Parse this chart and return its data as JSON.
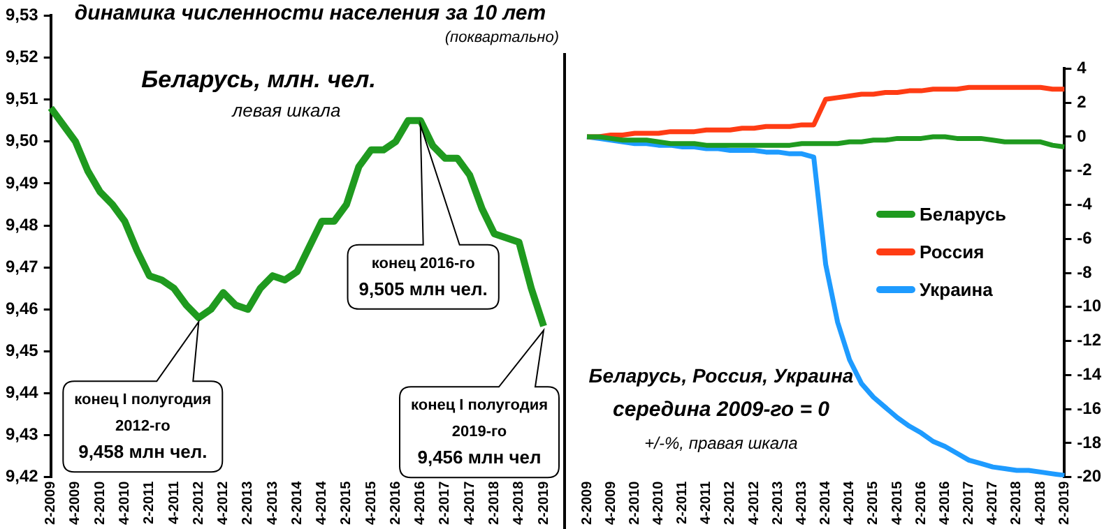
{
  "chart_data": [
    {
      "type": "line",
      "title": "динамика численности населения за 10 лет",
      "subtitle": "(поквартально)",
      "categories": [
        "2-2009",
        null,
        "4-2009",
        null,
        "2-2010",
        null,
        "4-2010",
        null,
        "2-2011",
        null,
        "4-2011",
        null,
        "2-2012",
        null,
        "4-2012",
        null,
        "2-2013",
        null,
        "4-2013",
        null,
        "2-2014",
        null,
        "4-2014",
        null,
        "2-2015",
        null,
        "4-2015",
        null,
        "2-2016",
        null,
        "4-2016",
        null,
        "2-2017",
        null,
        "4-2017",
        null,
        "2-2018",
        null,
        "4-2018",
        null,
        "2-2019"
      ],
      "values": [
        9.508,
        9.504,
        9.5,
        9.493,
        9.488,
        9.485,
        9.481,
        9.474,
        9.468,
        9.467,
        9.465,
        9.461,
        9.458,
        9.46,
        9.464,
        9.461,
        9.46,
        9.465,
        9.468,
        9.467,
        9.469,
        9.475,
        9.481,
        9.481,
        9.485,
        9.494,
        9.498,
        9.498,
        9.5,
        9.505,
        9.505,
        9.499,
        9.496,
        9.496,
        9.492,
        9.484,
        9.478,
        9.477,
        9.476,
        9.465,
        9.456
      ],
      "color": "#1f9a1f",
      "marker": "none",
      "ylim": [
        9.42,
        9.53
      ],
      "yticks": [
        {
          "value": 9.42,
          "label": "9,42"
        },
        {
          "value": 9.43,
          "label": "9,43"
        },
        {
          "value": 9.44,
          "label": "9,44"
        },
        {
          "value": 9.45,
          "label": "9,45"
        },
        {
          "value": 9.46,
          "label": "9,46"
        },
        {
          "value": 9.47,
          "label": "9,47"
        },
        {
          "value": 9.48,
          "label": "9,48"
        },
        {
          "value": 9.49,
          "label": "9,49"
        },
        {
          "value": 9.5,
          "label": "9,50"
        },
        {
          "value": 9.51,
          "label": "9,51"
        },
        {
          "value": 9.52,
          "label": "9,52"
        },
        {
          "value": 9.53,
          "label": "9,53"
        }
      ],
      "annotations": [
        "Беларусь, млн. чел.",
        "левая шкала",
        "конец I полугодия\n2012-го\n9,458 млн чел.",
        "конец 2016-го\n9,505 млн чел.",
        "конец I полугодия\n2019-го\n9,456 млн чел"
      ]
    },
    {
      "type": "line",
      "categories": [
        "2-2009",
        null,
        "4-2009",
        null,
        "2-2010",
        null,
        "4-2010",
        null,
        "2-2011",
        null,
        "4-2011",
        null,
        "2-2012",
        null,
        "4-2012",
        null,
        "2-2013",
        null,
        "4-2013",
        null,
        "2-2014",
        null,
        "4-2014",
        null,
        "2-2015",
        null,
        "4-2015",
        null,
        "2-2016",
        null,
        "4-2016",
        null,
        "2-2017",
        null,
        "4-2017",
        null,
        "2-2018",
        null,
        "4-2018",
        null,
        "2-2019"
      ],
      "series": [
        {
          "name": "Беларусь",
          "color": "#1f9a1f",
          "axis": "y2",
          "values": [
            0,
            0,
            -0.1,
            -0.2,
            -0.2,
            -0.2,
            -0.3,
            -0.4,
            -0.4,
            -0.4,
            -0.5,
            -0.5,
            -0.5,
            -0.5,
            -0.5,
            -0.5,
            -0.5,
            -0.5,
            -0.4,
            -0.4,
            -0.4,
            -0.4,
            -0.3,
            -0.3,
            -0.2,
            -0.2,
            -0.1,
            -0.1,
            -0.1,
            0,
            0,
            -0.1,
            -0.1,
            -0.1,
            -0.2,
            -0.3,
            -0.3,
            -0.3,
            -0.3,
            -0.5,
            -0.6
          ]
        },
        {
          "name": "Россия",
          "color": "#ff3c14",
          "axis": "y2",
          "values": [
            0,
            0,
            0.1,
            0.1,
            0.2,
            0.2,
            0.2,
            0.3,
            0.3,
            0.3,
            0.4,
            0.4,
            0.4,
            0.5,
            0.5,
            0.6,
            0.6,
            0.6,
            0.7,
            0.7,
            2.2,
            2.3,
            2.4,
            2.5,
            2.5,
            2.6,
            2.6,
            2.7,
            2.7,
            2.8,
            2.8,
            2.8,
            2.9,
            2.9,
            2.9,
            2.9,
            2.9,
            2.9,
            2.9,
            2.8,
            2.8
          ]
        },
        {
          "name": "Украина",
          "color": "#1e9bff",
          "axis": "y2",
          "values": [
            0,
            -0.1,
            -0.2,
            -0.3,
            -0.4,
            -0.4,
            -0.5,
            -0.5,
            -0.6,
            -0.6,
            -0.7,
            -0.7,
            -0.8,
            -0.8,
            -0.8,
            -0.9,
            -0.9,
            -1,
            -1,
            -1.2,
            -7.5,
            -10.9,
            -13.1,
            -14.5,
            -15.3,
            -15.9,
            -16.5,
            -17,
            -17.4,
            -17.9,
            -18.2,
            -18.6,
            -19,
            -19.2,
            -19.4,
            -19.5,
            -19.6,
            -19.6,
            -19.7,
            -19.8,
            -19.9
          ]
        }
      ],
      "marker": "none",
      "legend": "right",
      "y2lim": [
        -20,
        4
      ],
      "y2ticks": [
        -20,
        -18,
        -16,
        -14,
        -12,
        -10,
        -8,
        -6,
        -4,
        -2,
        0,
        2,
        4
      ],
      "annotations": [
        "Беларусь, Россия, Украина",
        "середина 2009-го = 0",
        "+/-%, правая шкала"
      ]
    }
  ]
}
